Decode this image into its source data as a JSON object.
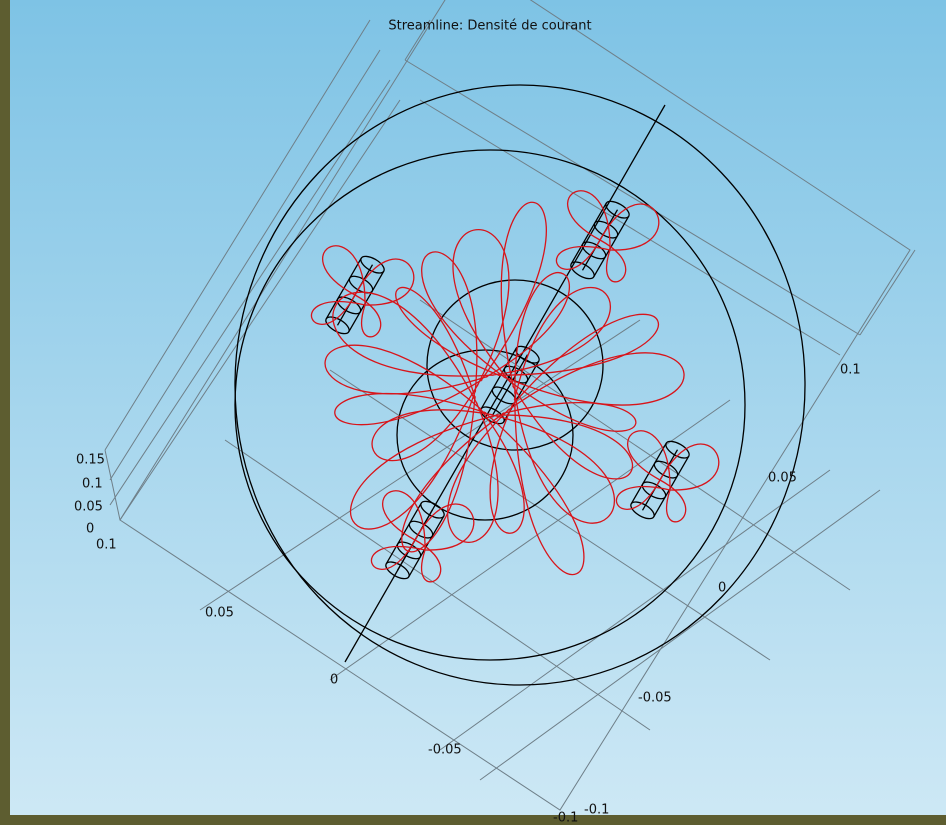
{
  "plot": {
    "title": "Streamline: Densité de courant",
    "z_axis_labels": [
      "0.15",
      "0.1",
      "0.05",
      "0"
    ],
    "x_axis_labels": [
      "0.1",
      "0.05",
      "0",
      "-0.05",
      "-0.1"
    ],
    "y_axis_labels": [
      "0.1",
      "0.05",
      "0",
      "-0.05",
      "-0.1"
    ]
  }
}
